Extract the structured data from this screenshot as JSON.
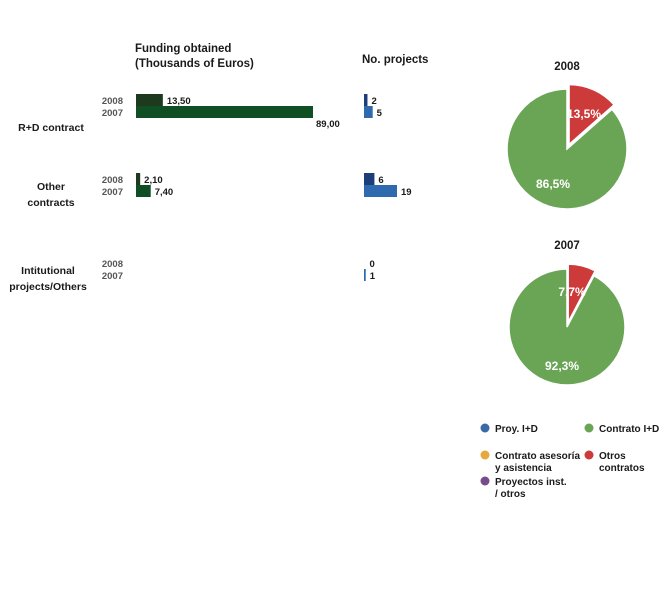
{
  "headers": {
    "funding_line1": "Funding obtained",
    "funding_line2": "(Thousands of Euros)",
    "projects": "No. projects"
  },
  "chart_data": [
    {
      "type": "bar",
      "title_lines": [
        "Funding obtained",
        "(Thousands of Euros)"
      ],
      "categories": [
        {
          "label_lines": [
            "R+D contract"
          ],
          "years": [
            "2008",
            "2007"
          ],
          "values": [
            13.5,
            89.0
          ],
          "labels": [
            "13,50",
            "89,00"
          ]
        },
        {
          "label_lines": [
            "Other",
            "contracts"
          ],
          "years": [
            "2008",
            "2007"
          ],
          "values": [
            2.1,
            7.4
          ],
          "labels": [
            "2,10",
            "7,40"
          ]
        },
        {
          "label_lines": [
            "Intitutional",
            "projects/Others"
          ],
          "years": [
            "2008",
            "2007"
          ],
          "values": [
            0,
            0
          ],
          "labels": [
            "",
            ""
          ]
        }
      ],
      "xlim": [
        0,
        89
      ],
      "colors": {
        "2008": "#1e3a1e",
        "2007": "#0f4f23"
      }
    },
    {
      "type": "bar",
      "title": "No. projects",
      "categories": [
        {
          "years": [
            "2008",
            "2007"
          ],
          "values": [
            2,
            5
          ],
          "labels": [
            "2",
            "5"
          ]
        },
        {
          "years": [
            "2008",
            "2007"
          ],
          "values": [
            6,
            19
          ],
          "labels": [
            "6",
            "19"
          ]
        },
        {
          "years": [
            "2008",
            "2007"
          ],
          "values": [
            0,
            1
          ],
          "labels": [
            "0",
            "1"
          ]
        }
      ],
      "xlim": [
        0,
        19
      ],
      "colors": {
        "2008": "#1c3f7a",
        "2007": "#2f6aae"
      }
    },
    {
      "type": "pie",
      "title": "2008",
      "slices": [
        {
          "category": "Contrato I+D",
          "value": 86.5,
          "label": "86,5%",
          "color": "#6aa556"
        },
        {
          "category": "Otros contratos",
          "value": 13.5,
          "label": "13,5%",
          "color": "#cc3a3a",
          "exploded": true
        }
      ]
    },
    {
      "type": "pie",
      "title": "2007",
      "slices": [
        {
          "category": "Contrato I+D",
          "value": 92.3,
          "label": "92,3%",
          "color": "#6aa556"
        },
        {
          "category": "Otros contratos",
          "value": 7.7,
          "label": "7,7%",
          "color": "#cc3a3a",
          "exploded": true
        }
      ]
    }
  ],
  "legend": [
    {
      "lines": [
        "Proy. I+D"
      ],
      "color": "#3a6aa8",
      "icon": "dot-icon"
    },
    {
      "lines": [
        "Contrato I+D"
      ],
      "color": "#6aa556",
      "icon": "dot-icon"
    },
    {
      "lines": [
        "Contrato asesoría",
        "y asistencia"
      ],
      "color": "#e6a93c",
      "icon": "dot-icon"
    },
    {
      "lines": [
        "Otros",
        "contratos"
      ],
      "color": "#cc3a3a",
      "icon": "dot-icon"
    },
    {
      "lines": [
        "Proyectos inst.",
        "/ otros"
      ],
      "color": "#7a4b8c",
      "icon": "dot-icon"
    }
  ]
}
